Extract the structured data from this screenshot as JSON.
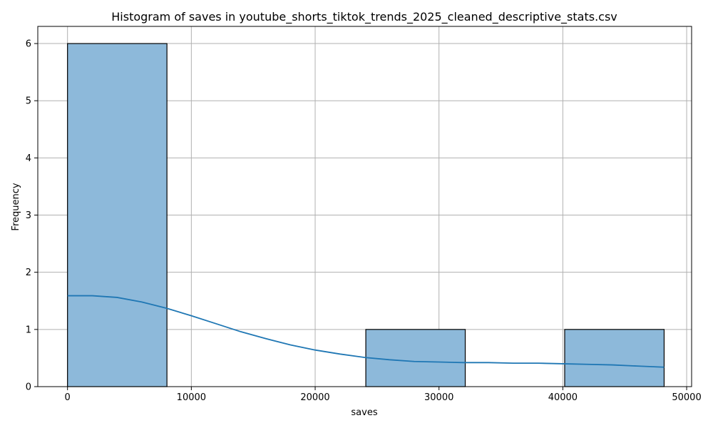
{
  "chart_data": {
    "type": "bar",
    "title": "Histogram of saves in youtube_shorts_tiktok_trends_2025_cleaned_descriptive_stats.csv",
    "xlabel": "saves",
    "ylabel": "Frequency",
    "xlim": [
      -2400,
      50400
    ],
    "ylim": [
      0,
      6.3
    ],
    "xticks": [
      0,
      10000,
      20000,
      30000,
      40000,
      50000
    ],
    "xtick_labels": [
      "0",
      "10000",
      "20000",
      "30000",
      "40000",
      "50000"
    ],
    "yticks": [
      0,
      1,
      2,
      3,
      4,
      5,
      6
    ],
    "ytick_labels": [
      "0",
      "1",
      "2",
      "3",
      "4",
      "5",
      "6"
    ],
    "grid": true,
    "bins": [
      {
        "x0": 0,
        "x1": 8030,
        "count": 6
      },
      {
        "x0": 8030,
        "x1": 16060,
        "count": 0
      },
      {
        "x0": 16060,
        "x1": 24090,
        "count": 0
      },
      {
        "x0": 24090,
        "x1": 32120,
        "count": 1
      },
      {
        "x0": 32120,
        "x1": 40150,
        "count": 0
      },
      {
        "x0": 40150,
        "x1": 48180,
        "count": 1
      }
    ],
    "kde": {
      "x": [
        0,
        2000,
        4000,
        6000,
        8000,
        10000,
        12000,
        14000,
        16000,
        18000,
        20000,
        22000,
        24000,
        26000,
        28000,
        30000,
        32000,
        34000,
        36000,
        38000,
        40000,
        42000,
        44000,
        46000,
        48180
      ],
      "y": [
        1.59,
        1.59,
        1.56,
        1.48,
        1.37,
        1.24,
        1.1,
        0.96,
        0.84,
        0.73,
        0.64,
        0.57,
        0.51,
        0.47,
        0.44,
        0.43,
        0.42,
        0.42,
        0.41,
        0.41,
        0.4,
        0.39,
        0.38,
        0.36,
        0.34
      ]
    },
    "colors": {
      "bar_fill": "#8db9da",
      "bar_edge": "#000000",
      "kde_line": "#1f77b4",
      "grid": "#b0b0b0"
    }
  }
}
